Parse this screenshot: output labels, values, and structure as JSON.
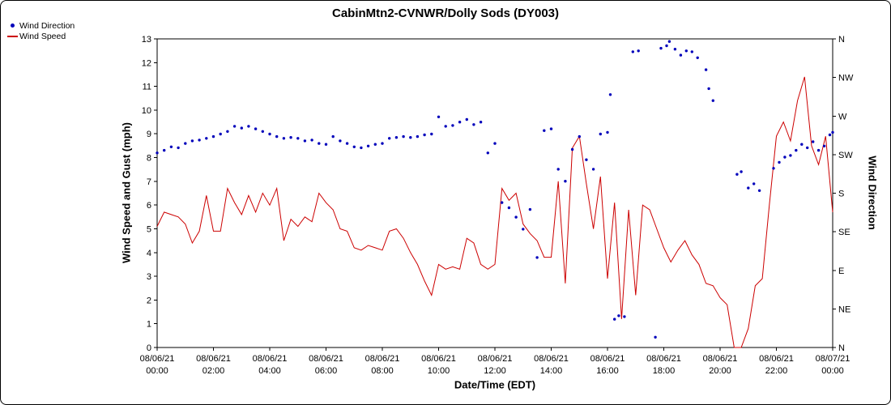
{
  "window": {
    "title": "CabinMtn2-CVNWR/Dolly Sods (DY003)"
  },
  "legend": {
    "items": [
      {
        "label": "Wind Direction",
        "marker": "dot",
        "color": "#0000bb"
      },
      {
        "label": "Wind Speed",
        "marker": "line",
        "color": "#cc0000"
      }
    ]
  },
  "chart_data": {
    "type": "line",
    "title": "CabinMtn2-CVNWR/Dolly Sods (DY003)",
    "xlabel": "Date/Time (EDT)",
    "ylabel_left": "Wind Speed and Gust (mph)",
    "ylabel_right": "Wind Direction",
    "x_unit": "hours since 08/06/21 00:00 EDT",
    "x_range": [
      0,
      24
    ],
    "grid": false,
    "legend_position": "top-left",
    "left_axis": {
      "range": [
        0,
        13
      ],
      "ticks": [
        0,
        1,
        2,
        3,
        4,
        5,
        6,
        7,
        8,
        9,
        10,
        11,
        12,
        13
      ]
    },
    "right_axis": {
      "range_deg": [
        0,
        360
      ],
      "ticks_top_to_bottom": [
        "N",
        "NW",
        "W",
        "SW",
        "S",
        "SE",
        "E",
        "NE",
        "N"
      ]
    },
    "x_ticks": [
      {
        "date": "08/06/21",
        "time": "00:00"
      },
      {
        "date": "08/06/21",
        "time": "02:00"
      },
      {
        "date": "08/06/21",
        "time": "04:00"
      },
      {
        "date": "08/06/21",
        "time": "06:00"
      },
      {
        "date": "08/06/21",
        "time": "08:00"
      },
      {
        "date": "08/06/21",
        "time": "10:00"
      },
      {
        "date": "08/06/21",
        "time": "12:00"
      },
      {
        "date": "08/06/21",
        "time": "14:00"
      },
      {
        "date": "08/06/21",
        "time": "16:00"
      },
      {
        "date": "08/06/21",
        "time": "18:00"
      },
      {
        "date": "08/06/21",
        "time": "20:00"
      },
      {
        "date": "08/06/21",
        "time": "22:00"
      },
      {
        "date": "08/07/21",
        "time": "00:00"
      }
    ],
    "series": [
      {
        "name": "Wind Speed",
        "mode": "line",
        "axis": "left",
        "units": "mph",
        "color": "#cc0000",
        "x_start": 0,
        "x_step": 0.25,
        "values": [
          5.1,
          5.7,
          5.6,
          5.5,
          5.2,
          4.4,
          4.9,
          6.4,
          4.9,
          4.9,
          6.7,
          6.1,
          5.6,
          6.4,
          5.7,
          6.5,
          6.0,
          6.7,
          4.5,
          5.4,
          5.1,
          5.5,
          5.3,
          6.5,
          6.1,
          5.8,
          5.0,
          4.9,
          4.2,
          4.1,
          4.3,
          4.2,
          4.1,
          4.9,
          5.0,
          4.6,
          4.0,
          3.5,
          2.8,
          2.2,
          3.5,
          3.3,
          3.4,
          3.3,
          4.6,
          4.4,
          3.5,
          3.3,
          3.5,
          6.7,
          6.2,
          6.5,
          5.2,
          4.8,
          4.5,
          3.8,
          3.8,
          7.0,
          2.7,
          8.4,
          8.9,
          6.9,
          5.0,
          7.2,
          2.9,
          6.1,
          1.2,
          5.8,
          2.2,
          6.0,
          5.8,
          5.0,
          4.2,
          3.6,
          4.1,
          4.5,
          3.9,
          3.5,
          2.7,
          2.6,
          2.1,
          1.8,
          0.0,
          0.0,
          0.8,
          2.6,
          2.9,
          6.0,
          8.9,
          9.5,
          8.7,
          10.4,
          11.4,
          8.5,
          7.7,
          8.9,
          5.7
        ]
      },
      {
        "name": "Wind Direction",
        "mode": "scatter",
        "axis": "right",
        "units": "degrees (0=N bottom, 360=N top)",
        "color": "#0000bb",
        "x": [
          0,
          0.25,
          0.5,
          0.75,
          1,
          1.25,
          1.5,
          1.75,
          2,
          2.25,
          2.5,
          2.75,
          3,
          3.25,
          3.5,
          3.75,
          4,
          4.25,
          4.5,
          4.75,
          5,
          5.25,
          5.5,
          5.75,
          6,
          6.25,
          6.5,
          6.75,
          7,
          7.25,
          7.5,
          7.75,
          8,
          8.25,
          8.5,
          8.75,
          9,
          9.25,
          9.5,
          9.75,
          10,
          10.25,
          10.5,
          10.75,
          11,
          11.25,
          11.5,
          11.75,
          12,
          12.25,
          12.5,
          12.75,
          13,
          13.25,
          13.5,
          13.75,
          14,
          14.25,
          14.5,
          14.75,
          15,
          15.25,
          15.5,
          15.75,
          16,
          16.1,
          16.25,
          16.4,
          16.6,
          16.9,
          17.1,
          17.7,
          17.9,
          18.1,
          18.2,
          18.4,
          18.6,
          18.8,
          19,
          19.2,
          19.5,
          19.6,
          19.75,
          20.6,
          20.75,
          21,
          21.2,
          21.4,
          21.9,
          22.1,
          22.3,
          22.5,
          22.7,
          22.9,
          23.1,
          23.3,
          23.5,
          23.7,
          23.9,
          24
        ],
        "deg": [
          227,
          230,
          234,
          233,
          238,
          241,
          242,
          244,
          246,
          249,
          252,
          258,
          256,
          258,
          255,
          252,
          249,
          246,
          244,
          245,
          244,
          241,
          242,
          238,
          237,
          246,
          241,
          238,
          234,
          233,
          235,
          237,
          238,
          244,
          245,
          246,
          245,
          246,
          248,
          249,
          269,
          258,
          259,
          263,
          266,
          260,
          263,
          227,
          238,
          169,
          163,
          152,
          138,
          161,
          105,
          253,
          255,
          208,
          194,
          231,
          246,
          219,
          208,
          249,
          251,
          295,
          33,
          37,
          36,
          345,
          346,
          12,
          349,
          352,
          357,
          348,
          341,
          346,
          345,
          338,
          324,
          302,
          288,
          202,
          205,
          186,
          191,
          183,
          209,
          216,
          222,
          224,
          230,
          237,
          233,
          240,
          230,
          235,
          248,
          251
        ]
      }
    ]
  }
}
